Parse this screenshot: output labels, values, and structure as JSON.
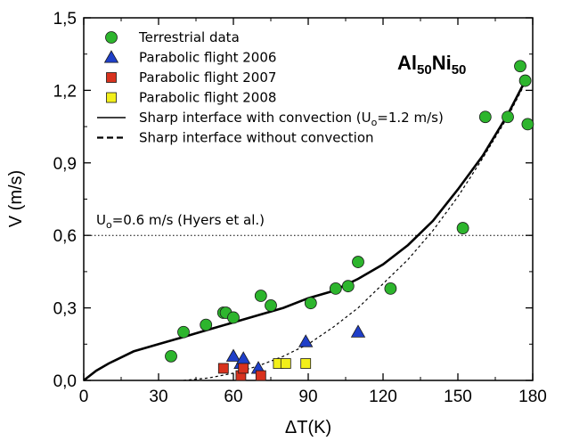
{
  "chart_data": {
    "type": "scatter",
    "xlabel": "ΔT(K)",
    "ylabel": "V (m/s)",
    "xlim": [
      0,
      180
    ],
    "ylim": [
      0,
      1.5
    ],
    "x_ticks": [
      "0",
      "30",
      "60",
      "90",
      "120",
      "150",
      "180"
    ],
    "y_ticks": [
      "0,0",
      "0,3",
      "0,6",
      "0,9",
      "1,2",
      "1,5"
    ],
    "title_main": "Al",
    "title_sub1": "50",
    "title_mid": "Ni",
    "title_sub2": "50",
    "reference_line": {
      "y": 0.6,
      "label_main": "U",
      "label_sub": "o",
      "label_rest": "=0.6 m/s (Hyers et al.)"
    },
    "colors": {
      "terrestrial": "#2db52d",
      "pf2006": "#1f3fc8",
      "pf2007": "#d8321e",
      "pf2008": "#f2ef1a"
    },
    "legend": [
      {
        "key": "terrestrial",
        "label": "Terrestrial data"
      },
      {
        "key": "pf2006",
        "label": "Parabolic flight 2006"
      },
      {
        "key": "pf2007",
        "label": "Parabolic flight 2007"
      },
      {
        "key": "pf2008",
        "label": "Parabolic flight 2008"
      },
      {
        "key": "solid",
        "label_pre": "Sharp interface with convection (U",
        "label_sub": "o",
        "label_post": "=1.2 m/s)"
      },
      {
        "key": "dashed",
        "label": "Sharp interface without convection"
      }
    ],
    "series": [
      {
        "key": "terrestrial",
        "name": "Terrestrial data",
        "marker": "circle",
        "points": [
          [
            35,
            0.1
          ],
          [
            40,
            0.2
          ],
          [
            49,
            0.23
          ],
          [
            56,
            0.28
          ],
          [
            57,
            0.28
          ],
          [
            60,
            0.26
          ],
          [
            71,
            0.35
          ],
          [
            75,
            0.31
          ],
          [
            91,
            0.32
          ],
          [
            101,
            0.38
          ],
          [
            106,
            0.39
          ],
          [
            110,
            0.49
          ],
          [
            123,
            0.38
          ],
          [
            152,
            0.63
          ],
          [
            161,
            1.09
          ],
          [
            170,
            1.09
          ],
          [
            175,
            1.3
          ],
          [
            177,
            1.24
          ],
          [
            178,
            1.06
          ]
        ]
      },
      {
        "key": "pf2006",
        "name": "Parabolic flight 2006",
        "marker": "triangle",
        "points": [
          [
            60,
            0.1
          ],
          [
            63,
            0.07
          ],
          [
            64,
            0.09
          ],
          [
            70,
            0.05
          ],
          [
            89,
            0.16
          ],
          [
            110,
            0.2
          ]
        ]
      },
      {
        "key": "pf2007",
        "name": "Parabolic flight 2007",
        "marker": "square",
        "points": [
          [
            56,
            0.05
          ],
          [
            63,
            0.02
          ],
          [
            64,
            0.05
          ],
          [
            71,
            0.02
          ]
        ]
      },
      {
        "key": "pf2008",
        "name": "Parabolic flight 2008",
        "marker": "square",
        "points": [
          [
            78,
            0.07
          ],
          [
            81,
            0.07
          ],
          [
            89,
            0.07
          ]
        ]
      }
    ],
    "curves": [
      {
        "key": "solid",
        "style": "solid",
        "points": [
          [
            0,
            0
          ],
          [
            5,
            0.04
          ],
          [
            10,
            0.07
          ],
          [
            20,
            0.12
          ],
          [
            30,
            0.15
          ],
          [
            40,
            0.18
          ],
          [
            50,
            0.21
          ],
          [
            60,
            0.24
          ],
          [
            70,
            0.27
          ],
          [
            80,
            0.3
          ],
          [
            90,
            0.34
          ],
          [
            100,
            0.37
          ],
          [
            110,
            0.42
          ],
          [
            120,
            0.48
          ],
          [
            130,
            0.56
          ],
          [
            140,
            0.66
          ],
          [
            150,
            0.79
          ],
          [
            160,
            0.93
          ],
          [
            170,
            1.1
          ],
          [
            178,
            1.26
          ]
        ]
      },
      {
        "key": "dashed",
        "style": "dashed",
        "points": [
          [
            40,
            0.0
          ],
          [
            50,
            0.01
          ],
          [
            60,
            0.03
          ],
          [
            70,
            0.06
          ],
          [
            80,
            0.1
          ],
          [
            90,
            0.15
          ],
          [
            100,
            0.22
          ],
          [
            110,
            0.3
          ],
          [
            120,
            0.4
          ],
          [
            130,
            0.5
          ],
          [
            140,
            0.62
          ],
          [
            150,
            0.76
          ],
          [
            160,
            0.92
          ],
          [
            170,
            1.09
          ],
          [
            178,
            1.25
          ]
        ]
      }
    ]
  }
}
